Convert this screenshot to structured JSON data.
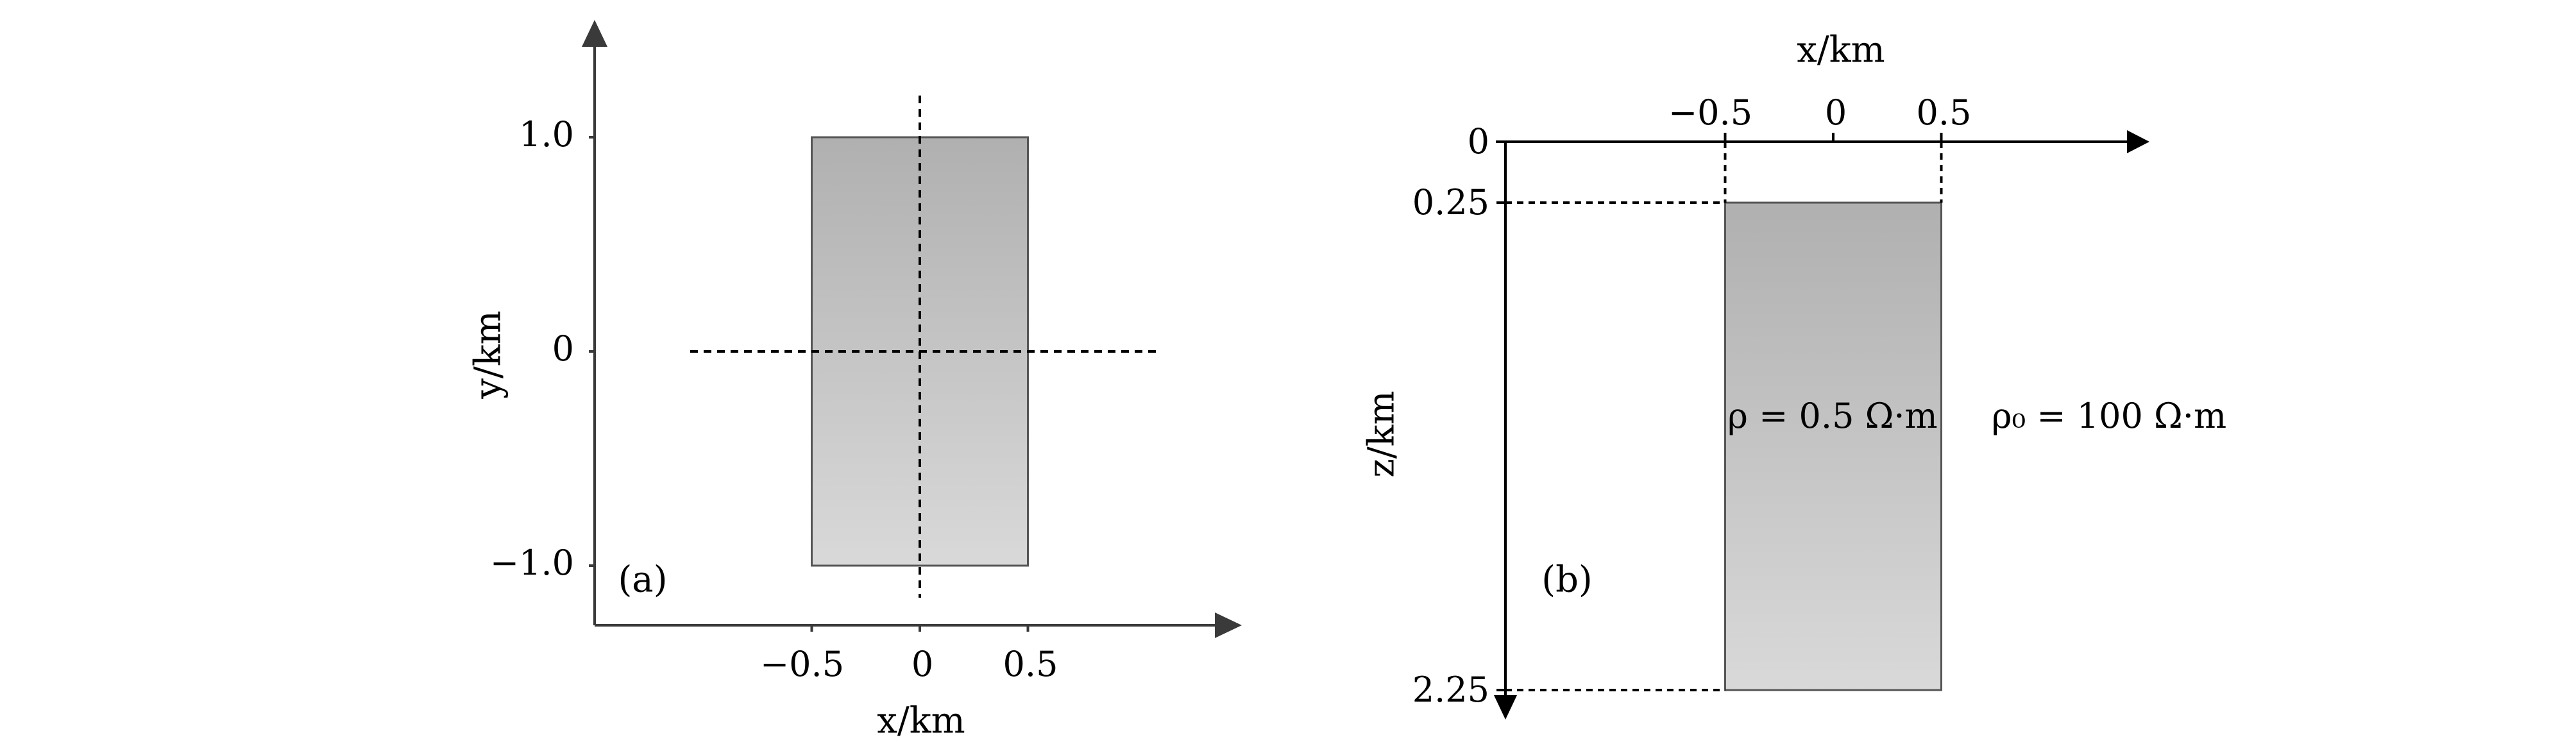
{
  "chart_data": [
    {
      "type": "diagram",
      "panel_label": "(a)",
      "xlabel": "x/km",
      "ylabel": "y/km",
      "xticks": [
        {
          "v": -0.5,
          "label": "−0.5"
        },
        {
          "v": 0,
          "label": "0"
        },
        {
          "v": 0.5,
          "label": "0.5"
        }
      ],
      "yticks": [
        {
          "v": 1.0,
          "label": "1.0"
        },
        {
          "v": 0,
          "label": "0"
        },
        {
          "v": -1.0,
          "label": "−1.0"
        }
      ],
      "body": {
        "x": [
          -0.5,
          0.5
        ],
        "y": [
          -1.0,
          1.0
        ]
      },
      "profiles": [
        {
          "axis": "x",
          "at": 0
        },
        {
          "axis": "y",
          "at": 0
        }
      ]
    },
    {
      "type": "diagram",
      "panel_label": "(b)",
      "xlabel": "x/km",
      "ylabel": "z/km",
      "xticks": [
        {
          "v": -0.5,
          "label": "−0.5"
        },
        {
          "v": 0,
          "label": "0"
        },
        {
          "v": 0.5,
          "label": "0.5"
        }
      ],
      "zticks": [
        {
          "v": 0,
          "label": "0"
        },
        {
          "v": 0.25,
          "label": "0.25"
        },
        {
          "v": 2.25,
          "label": "2.25"
        }
      ],
      "body": {
        "x": [
          -0.5,
          0.5
        ],
        "z": [
          0.25,
          2.25
        ]
      },
      "body_label": "ρ = 0.5 Ω·m",
      "background_label": "ρ₀ = 100 Ω·m"
    }
  ],
  "colors": {
    "axis": "#3a3a3a",
    "axis_b": "#000000",
    "fill_top": "#b0b0b0",
    "fill_bottom": "#d9d9d9",
    "edge": "#555555"
  }
}
